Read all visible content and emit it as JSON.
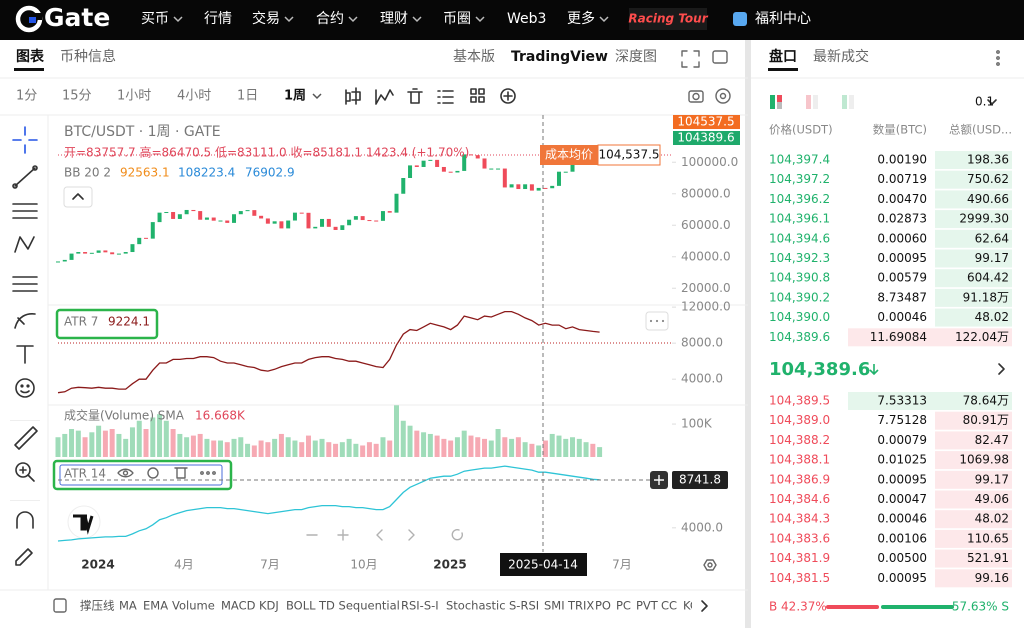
{
  "nav": {
    "logo": "Gate",
    "items": [
      "买币",
      "行情",
      "交易",
      "合约",
      "理财",
      "币圈",
      "Web3",
      "更多"
    ],
    "promo": "Racing Tour",
    "welfare": "福利中心"
  },
  "chart_tabs": [
    "图表",
    "币种信息"
  ],
  "view_tabs": [
    "基本版",
    "TradingView",
    "深度图"
  ],
  "intervals": [
    "1分",
    "15分",
    "1小时",
    "4小时",
    "1日",
    "1周"
  ],
  "legend": {
    "symbol": "BTC/USDT · 1周 · GATE",
    "ohlc": "开=83757.7 高=86470.5 低=83111.0 收=85181.1 1423.4 (+1.70%)",
    "bb_name": "BB 20 2",
    "bb_values": [
      "92563.1",
      "108223.4",
      "76902.9"
    ]
  },
  "price_pane": {
    "ylim": [
      10000,
      130000
    ],
    "yticks": [
      {
        "value": 20000,
        "label": "20000.0"
      },
      {
        "value": 40000,
        "label": "40000.0"
      },
      {
        "value": 60000,
        "label": "60000.0"
      },
      {
        "value": 80000,
        "label": "80000.0"
      },
      {
        "value": 100000,
        "label": "100000.0"
      }
    ],
    "closes": [
      37000,
      38000,
      42000,
      43000,
      42000,
      42500,
      44000,
      42800,
      41600,
      42000,
      43000,
      48000,
      52000,
      51500,
      62000,
      68000,
      68400,
      64000,
      67000,
      69700,
      69000,
      63500,
      64900,
      62900,
      63000,
      61500,
      67000,
      69000,
      69600,
      66000,
      64300,
      61000,
      62500,
      58000,
      63000,
      68000,
      67900,
      58000,
      59000,
      64000,
      59000,
      57000,
      60000,
      63500,
      65800,
      63300,
      63000,
      62800,
      69000,
      68000,
      80000,
      90000,
      98000,
      97000,
      101000,
      101500,
      97000,
      94000,
      93500,
      94500,
      105000,
      104500,
      102400,
      96000,
      96000,
      96000,
      84000,
      86000,
      83000,
      86000,
      82000,
      83700,
      83500,
      85000,
      94000,
      94000,
      104000,
      104000,
      106000,
      104000,
      104400
    ],
    "up_color": "#20b26c",
    "down_color": "#ef4b5a",
    "badges": [
      "104537.5",
      "104389.6"
    ],
    "cost_label": "成本均价",
    "cost_value": "104,537.5"
  },
  "atr7_pane": {
    "name": "ATR 7",
    "value": "9224.1",
    "ylim": [
      1800,
      12900
    ],
    "yticks": [
      {
        "value": 4000,
        "label": "4000.0"
      },
      {
        "value": 8000,
        "label": "8000.0"
      },
      {
        "value": 12000,
        "label": "12000.0"
      }
    ],
    "values": [
      2500,
      2600,
      3000,
      3100,
      3050,
      3000,
      3100,
      3000,
      3000,
      2900,
      2900,
      3500,
      4000,
      4000,
      5000,
      5800,
      5800,
      6200,
      6200,
      6300,
      6300,
      6500,
      6500,
      6400,
      6000,
      5800,
      5800,
      5600,
      5400,
      5300,
      5000,
      4900,
      5100,
      5400,
      5600,
      5800,
      5800,
      6200,
      6400,
      6500,
      6500,
      6300,
      6200,
      6000,
      6000,
      5800,
      5600,
      5400,
      5300,
      6200,
      7800,
      9000,
      9500,
      9400,
      9800,
      10200,
      10000,
      9800,
      9500,
      10000,
      11000,
      10800,
      10600,
      11000,
      10900,
      11200,
      11500,
      11500,
      11200,
      10800,
      10500,
      10000,
      10200,
      10000,
      10000,
      9600,
      9800,
      9500,
      9400,
      9300,
      9224.1
    ],
    "color": "#8b1a1a"
  },
  "volume_pane": {
    "name": "成交量(Volume) SMA",
    "value": "16.668K",
    "ylim": [
      0,
      170
    ],
    "yticks": [
      {
        "value": 100,
        "label": "100K"
      }
    ],
    "values": [
      60,
      70,
      85,
      80,
      60,
      75,
      95,
      80,
      85,
      70,
      55,
      90,
      110,
      85,
      120,
      130,
      110,
      85,
      70,
      60,
      65,
      70,
      55,
      50,
      50,
      45,
      55,
      60,
      40,
      35,
      50,
      45,
      55,
      70,
      60,
      50,
      45,
      65,
      50,
      55,
      45,
      40,
      45,
      55,
      40,
      35,
      45,
      40,
      60,
      50,
      157,
      110,
      95,
      80,
      75,
      70,
      65,
      55,
      50,
      60,
      80,
      65,
      60,
      55,
      50,
      85,
      60,
      55,
      60,
      45,
      40,
      35,
      50,
      70,
      65,
      55,
      60,
      55,
      45,
      40,
      30
    ]
  },
  "atr14_pane": {
    "name": "ATR 14",
    "value": "8741.8",
    "ylim": [
      2300,
      11000
    ],
    "yticks": [
      {
        "value": 4000,
        "label": "4000.0"
      }
    ],
    "values": [
      2700,
      2750,
      2800,
      2900,
      2950,
      3000,
      3050,
      3100,
      3100,
      3150,
      3150,
      3400,
      3700,
      3900,
      4300,
      4800,
      5000,
      5300,
      5500,
      5700,
      5800,
      5900,
      6000,
      6000,
      6000,
      5900,
      5900,
      5800,
      5700,
      5600,
      5500,
      5400,
      5500,
      5600,
      5700,
      5800,
      5800,
      6000,
      6100,
      6200,
      6200,
      6200,
      6100,
      6100,
      6000,
      6000,
      5900,
      5800,
      5800,
      6100,
      6800,
      7500,
      8000,
      8300,
      8600,
      8900,
      9000,
      9100,
      9100,
      9300,
      9600,
      9700,
      9800,
      9900,
      9900,
      10000,
      10100,
      10000,
      9900,
      9800,
      9700,
      9500,
      9500,
      9400,
      9300,
      9200,
      9100,
      9000,
      8900,
      8800,
      8741.8
    ],
    "color": "#2ec4d6"
  },
  "time_axis": {
    "labels": [
      "2024",
      "4月",
      "7月",
      "10月",
      "2025",
      "7月"
    ],
    "crosshair": "2025-04-14"
  },
  "indicator_bar": [
    "撑压线",
    "MA",
    "EMA",
    "Volume",
    "MACD",
    "KDJ",
    "BOLL",
    "TD Sequential",
    "RSI-S-I",
    "Stochastic",
    "S-RSI",
    "SMI",
    "TRIX",
    "PO",
    "PC",
    "PVT",
    "CC",
    "KC"
  ],
  "order_book": {
    "tabs": [
      "盘口",
      "最新成交"
    ],
    "precision": "0.1",
    "headers": [
      "价格(USDT)",
      "数量(BTC)",
      "总额(USD..."
    ],
    "asks": [
      [
        "104,397.4",
        "0.00190",
        "198.36"
      ],
      [
        "104,397.2",
        "0.00719",
        "750.62"
      ],
      [
        "104,396.2",
        "0.00470",
        "490.66"
      ],
      [
        "104,396.1",
        "0.02873",
        "2999.30"
      ],
      [
        "104,394.6",
        "0.00060",
        "62.64"
      ],
      [
        "104,392.3",
        "0.00095",
        "99.17"
      ],
      [
        "104,390.8",
        "0.00579",
        "604.42"
      ],
      [
        "104,390.2",
        "8.73487",
        "91.18万"
      ],
      [
        "104,390.0",
        "0.00046",
        "48.02"
      ],
      [
        "104,389.6",
        "11.69084",
        "122.04万"
      ]
    ],
    "last_price": "104,389.6",
    "bids": [
      [
        "104,389.5",
        "7.53313",
        "78.64万"
      ],
      [
        "104,389.0",
        "7.75128",
        "80.91万"
      ],
      [
        "104,388.2",
        "0.00079",
        "82.47"
      ],
      [
        "104,388.1",
        "0.01025",
        "1069.98"
      ],
      [
        "104,386.9",
        "0.00095",
        "99.17"
      ],
      [
        "104,384.6",
        "0.00047",
        "49.06"
      ],
      [
        "104,384.3",
        "0.00046",
        "48.02"
      ],
      [
        "104,383.6",
        "0.00106",
        "110.65"
      ],
      [
        "104,381.9",
        "0.00500",
        "521.91"
      ],
      [
        "104,381.5",
        "0.00095",
        "99.16"
      ]
    ],
    "buy_ratio": "B 42.37%",
    "sell_ratio": "57.63% S"
  }
}
